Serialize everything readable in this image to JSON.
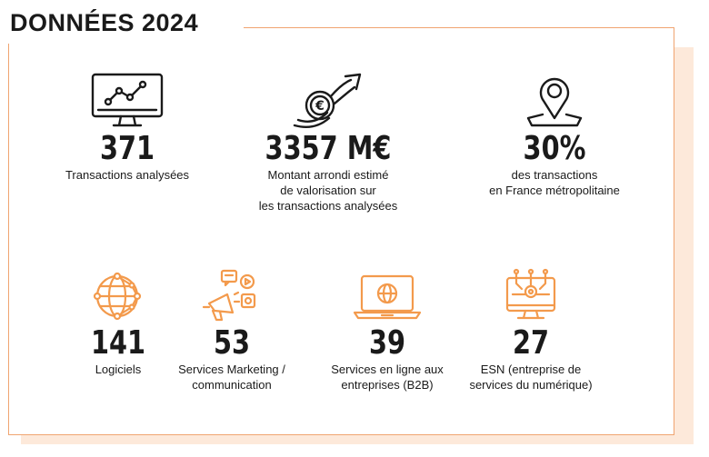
{
  "title": "DONNÉES 2024",
  "colors": {
    "accent": "#f39a4c",
    "shadow": "#fde9da",
    "border": "#f0a470",
    "text": "#1a1a1a"
  },
  "stats": [
    {
      "icon": "monitor-chart-icon",
      "value": "371",
      "label": "Transactions analysées"
    },
    {
      "icon": "euro-growth-icon",
      "value": "3357 M€",
      "label": "Montant arrondi estimé\nde valorisation sur\nles transactions analysées"
    },
    {
      "icon": "location-pin-icon",
      "value": "30%",
      "label": "des transactions\nen France métropolitaine"
    },
    {
      "icon": "network-globe-icon",
      "value": "141",
      "label": "Logiciels"
    },
    {
      "icon": "marketing-megaphone-icon",
      "value": "53",
      "label": "Services Marketing /\ncommunication"
    },
    {
      "icon": "laptop-web-icon",
      "value": "39",
      "label": "Services en ligne aux\nentreprises (B2B)"
    },
    {
      "icon": "circuit-monitor-icon",
      "value": "27",
      "label": "ESN (entreprise de\nservices du numérique)"
    }
  ]
}
